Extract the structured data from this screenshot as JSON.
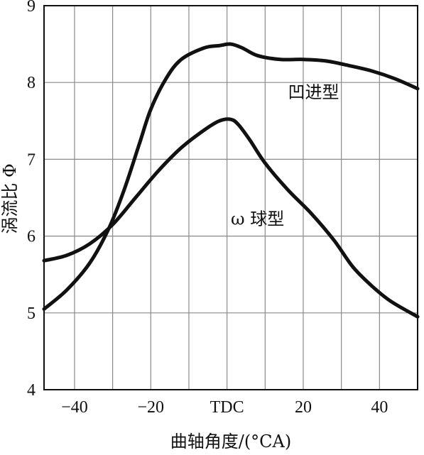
{
  "chart_data": {
    "type": "line",
    "xlabel": "曲轴角度/(°CA)",
    "ylabel": "涡流比 Φ",
    "xlim": [
      -48,
      50
    ],
    "ylim": [
      4,
      9
    ],
    "x_ticks": [
      {
        "value": -40,
        "label": "−40"
      },
      {
        "value": -20,
        "label": "−20"
      },
      {
        "value": 0,
        "label": "TDC"
      },
      {
        "value": 20,
        "label": "20"
      },
      {
        "value": 40,
        "label": "40"
      }
    ],
    "y_ticks": [
      {
        "value": 4,
        "label": "4"
      },
      {
        "value": 5,
        "label": "5"
      },
      {
        "value": 6,
        "label": "6"
      },
      {
        "value": 7,
        "label": "7"
      },
      {
        "value": 8,
        "label": "8"
      },
      {
        "value": 9,
        "label": "9"
      }
    ],
    "grid": true,
    "series": [
      {
        "name": "凹进型",
        "label_at": [
          16,
          7.8
        ],
        "points": [
          [
            -48,
            5.05
          ],
          [
            -42,
            5.3
          ],
          [
            -36,
            5.65
          ],
          [
            -31,
            6.1
          ],
          [
            -27,
            6.6
          ],
          [
            -23,
            7.2
          ],
          [
            -20,
            7.65
          ],
          [
            -16,
            8.05
          ],
          [
            -12,
            8.3
          ],
          [
            -6,
            8.45
          ],
          [
            -2,
            8.48
          ],
          [
            1,
            8.5
          ],
          [
            4,
            8.45
          ],
          [
            8,
            8.35
          ],
          [
            14,
            8.3
          ],
          [
            20,
            8.3
          ],
          [
            26,
            8.28
          ],
          [
            32,
            8.22
          ],
          [
            38,
            8.15
          ],
          [
            44,
            8.05
          ],
          [
            50,
            7.92
          ]
        ]
      },
      {
        "name": "ω 球型",
        "label_at": [
          1,
          6.15
        ],
        "points": [
          [
            -48,
            5.68
          ],
          [
            -42,
            5.75
          ],
          [
            -36,
            5.9
          ],
          [
            -30,
            6.15
          ],
          [
            -24,
            6.5
          ],
          [
            -18,
            6.85
          ],
          [
            -12,
            7.15
          ],
          [
            -6,
            7.38
          ],
          [
            -2,
            7.5
          ],
          [
            1,
            7.52
          ],
          [
            3,
            7.45
          ],
          [
            6,
            7.25
          ],
          [
            10,
            6.95
          ],
          [
            16,
            6.6
          ],
          [
            22,
            6.3
          ],
          [
            28,
            5.95
          ],
          [
            33,
            5.6
          ],
          [
            38,
            5.35
          ],
          [
            43,
            5.15
          ],
          [
            50,
            4.95
          ]
        ]
      }
    ]
  }
}
